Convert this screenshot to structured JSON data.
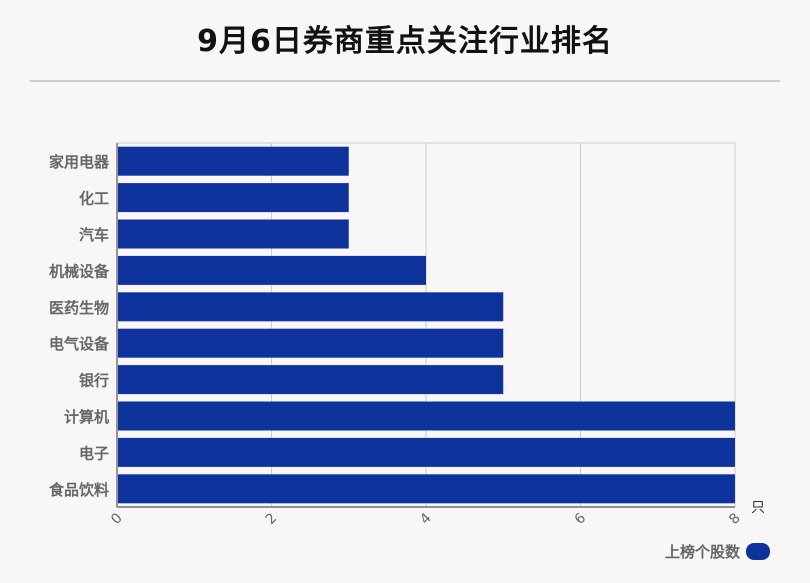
{
  "chart_data": {
    "type": "bar",
    "orientation": "horizontal",
    "title": "9月6日券商重点关注行业排名",
    "categories": [
      "家用电器",
      "化工",
      "汽车",
      "机械设备",
      "医药生物",
      "电气设备",
      "银行",
      "计算机",
      "电子",
      "食品饮料"
    ],
    "series": [
      {
        "name": "上榜个股数",
        "values": [
          3,
          3,
          3,
          4,
          5,
          5,
          5,
          8,
          8,
          8
        ]
      }
    ],
    "xlabel": "只",
    "xlim": [
      0,
      8
    ],
    "xticks": [
      "0",
      "2",
      "4",
      "6",
      "8"
    ],
    "grid": true,
    "legend_position": "bottom-right"
  },
  "colors": {
    "bar": "#0e339c",
    "grid": "#cccccc",
    "axis": "#555555",
    "label": "#666666"
  }
}
